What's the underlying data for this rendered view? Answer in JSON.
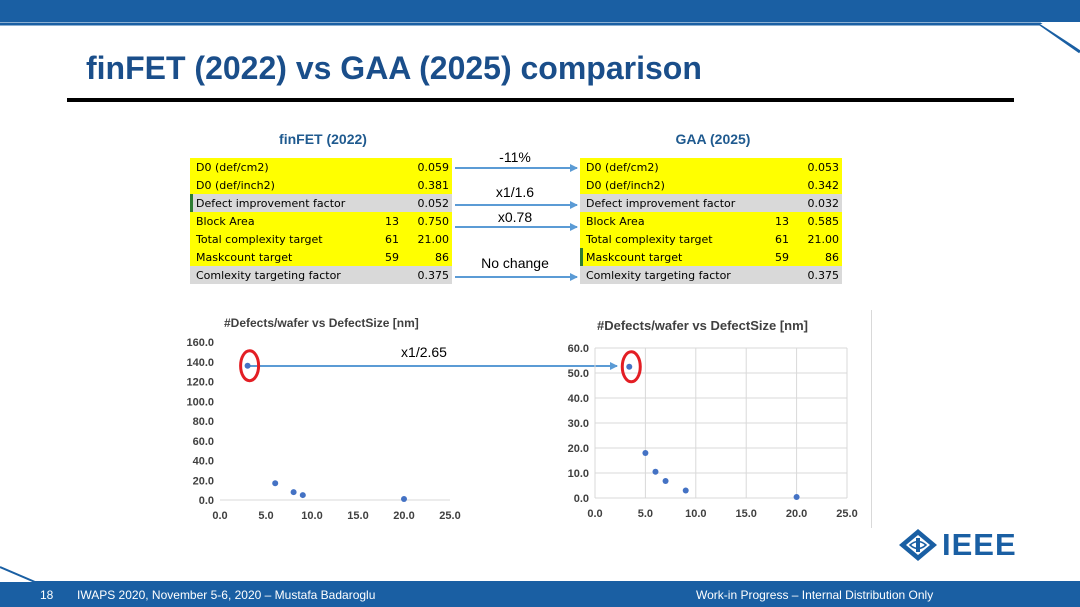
{
  "slide": {
    "title": "finFET (2022) vs GAA (2025) comparison",
    "page_number": "18",
    "footer_left": "IWAPS 2020, November 5-6, 2020 – Mustafa Badaroglu",
    "footer_right": "Work-in Progress – Internal Distribution Only",
    "logo_text": "IEEE",
    "colors": {
      "title": "#1a4e8a",
      "footer": "#1a5fa3",
      "highlight_yellow": "#ffff00",
      "highlight_gray": "#d9d9d9",
      "arrow": "#5b9bd5",
      "circle": "#e31e24"
    }
  },
  "finfet_table": {
    "title": "finFET (2022)",
    "rows": [
      {
        "label": "D0 (def/cm2)",
        "mid": "",
        "value": "0.059"
      },
      {
        "label": "D0 (def/inch2)",
        "mid": "",
        "value": "0.381"
      },
      {
        "label": "Defect improvement factor",
        "mid": "",
        "value": "0.052"
      },
      {
        "label": "Block Area",
        "mid": "13",
        "value": "0.750"
      },
      {
        "label": "Total complexity target",
        "mid": "61",
        "value": "21.00"
      },
      {
        "label": "Maskcount target",
        "mid": "59",
        "value": "86"
      },
      {
        "label": "Comlexity targeting factor",
        "mid": "",
        "value": "0.375"
      }
    ]
  },
  "gaa_table": {
    "title": "GAA (2025)",
    "rows": [
      {
        "label": "D0 (def/cm2)",
        "mid": "",
        "value": "0.053"
      },
      {
        "label": "D0 (def/inch2)",
        "mid": "",
        "value": "0.342"
      },
      {
        "label": "Defect improvement factor",
        "mid": "",
        "value": "0.032"
      },
      {
        "label": "Block Area",
        "mid": "13",
        "value": "0.585"
      },
      {
        "label": "Total complexity target",
        "mid": "61",
        "value": "21.00"
      },
      {
        "label": "Maskcount target",
        "mid": "59",
        "value": "86"
      },
      {
        "label": "Comlexity targeting factor",
        "mid": "",
        "value": "0.375"
      }
    ]
  },
  "arrows": {
    "a1": "-11%",
    "a2": "x1/1.6",
    "a3": "x0.78",
    "a4": "No change",
    "charts": "x1/2.65"
  },
  "chart_data": [
    {
      "type": "scatter",
      "title": "#Defects/wafer vs DefectSize [nm]",
      "xlim": [
        0,
        25
      ],
      "ylim": [
        0,
        160
      ],
      "xticks": [
        "0.0",
        "5.0",
        "10.0",
        "15.0",
        "20.0",
        "25.0"
      ],
      "yticks": [
        "0.0",
        "20.0",
        "40.0",
        "60.0",
        "80.0",
        "100.0",
        "120.0",
        "140.0",
        "160.0"
      ],
      "grid": false,
      "points": [
        {
          "x": 3,
          "y": 136
        },
        {
          "x": 6,
          "y": 17
        },
        {
          "x": 8,
          "y": 8
        },
        {
          "x": 9,
          "y": 5
        },
        {
          "x": 20,
          "y": 1
        }
      ],
      "highlight_point": 0
    },
    {
      "type": "scatter",
      "title": "#Defects/wafer vs DefectSize [nm]",
      "xlim": [
        0,
        25
      ],
      "ylim": [
        0,
        60
      ],
      "xticks": [
        "0.0",
        "5.0",
        "10.0",
        "15.0",
        "20.0",
        "25.0"
      ],
      "yticks": [
        "0.0",
        "10.0",
        "20.0",
        "30.0",
        "40.0",
        "50.0",
        "60.0"
      ],
      "grid": true,
      "points": [
        {
          "x": 3.4,
          "y": 52.5
        },
        {
          "x": 5,
          "y": 18
        },
        {
          "x": 6,
          "y": 10.5
        },
        {
          "x": 7,
          "y": 6.8
        },
        {
          "x": 9,
          "y": 3
        },
        {
          "x": 20,
          "y": 0.4
        }
      ],
      "highlight_point": 0
    }
  ]
}
